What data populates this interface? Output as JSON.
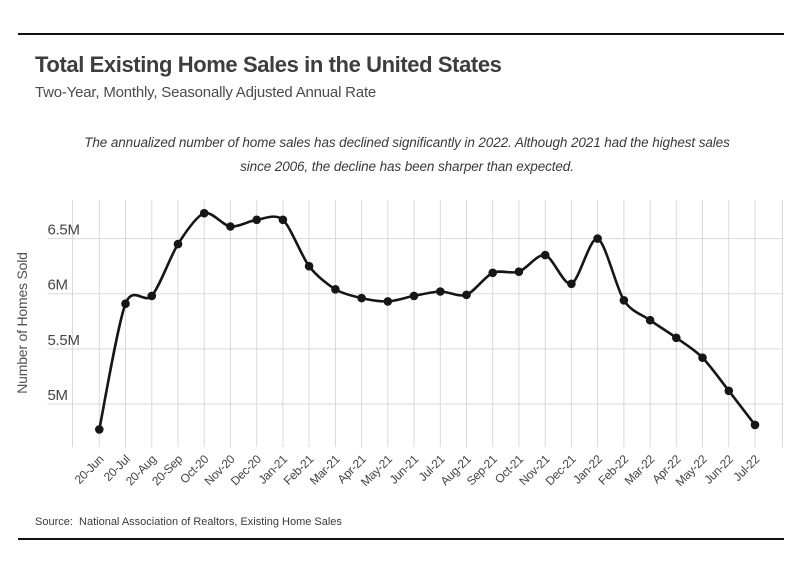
{
  "chart_data": {
    "type": "line",
    "title": "Total Existing Home Sales in the United States",
    "subtitle": "Two-Year, Monthly, Seasonally Adjusted Annual Rate",
    "note": [
      "The annualized number of home sales has declined significantly in 2022. Although 2021 had the highest sales",
      "since 2006, the decline has been sharper than expected."
    ],
    "source": "Source:  National Association of Realtors, Existing Home Sales",
    "ylabel": "Number of Homes Sold",
    "categories": [
      "20-Jun",
      "20-Jul",
      "20-Aug",
      "20-Sep",
      "Oct-20",
      "Nov-20",
      "Dec-20",
      "Jan-21",
      "Feb-21",
      "Mar-21",
      "Apr-21",
      "May-21",
      "Jun-21",
      "Jul-21",
      "Aug-21",
      "Sep-21",
      "Oct-21",
      "Nov-21",
      "Dec-21",
      "Jan-22",
      "Feb-22",
      "Mar-22",
      "Apr-22",
      "May-22",
      "Jun-22",
      "Jul-22"
    ],
    "values": [
      4.77,
      5.91,
      5.98,
      6.45,
      6.73,
      6.61,
      6.67,
      6.67,
      6.25,
      6.04,
      5.96,
      5.93,
      5.98,
      6.02,
      5.99,
      6.19,
      6.2,
      6.35,
      6.09,
      6.5,
      5.94,
      5.76,
      5.6,
      5.42,
      5.12,
      4.81
    ],
    "units": "millions of homes, SAAR",
    "ytick_labels": [
      "5M",
      "5.5M",
      "6M",
      "6.5M"
    ],
    "ytick_values": [
      5.0,
      5.5,
      6.0,
      6.5
    ],
    "ylim": [
      4.61,
      6.85
    ],
    "grid": true,
    "legend": "none",
    "line_color": "#161616",
    "marker_color": "#161616",
    "grid_color": "#d9d9d9"
  }
}
